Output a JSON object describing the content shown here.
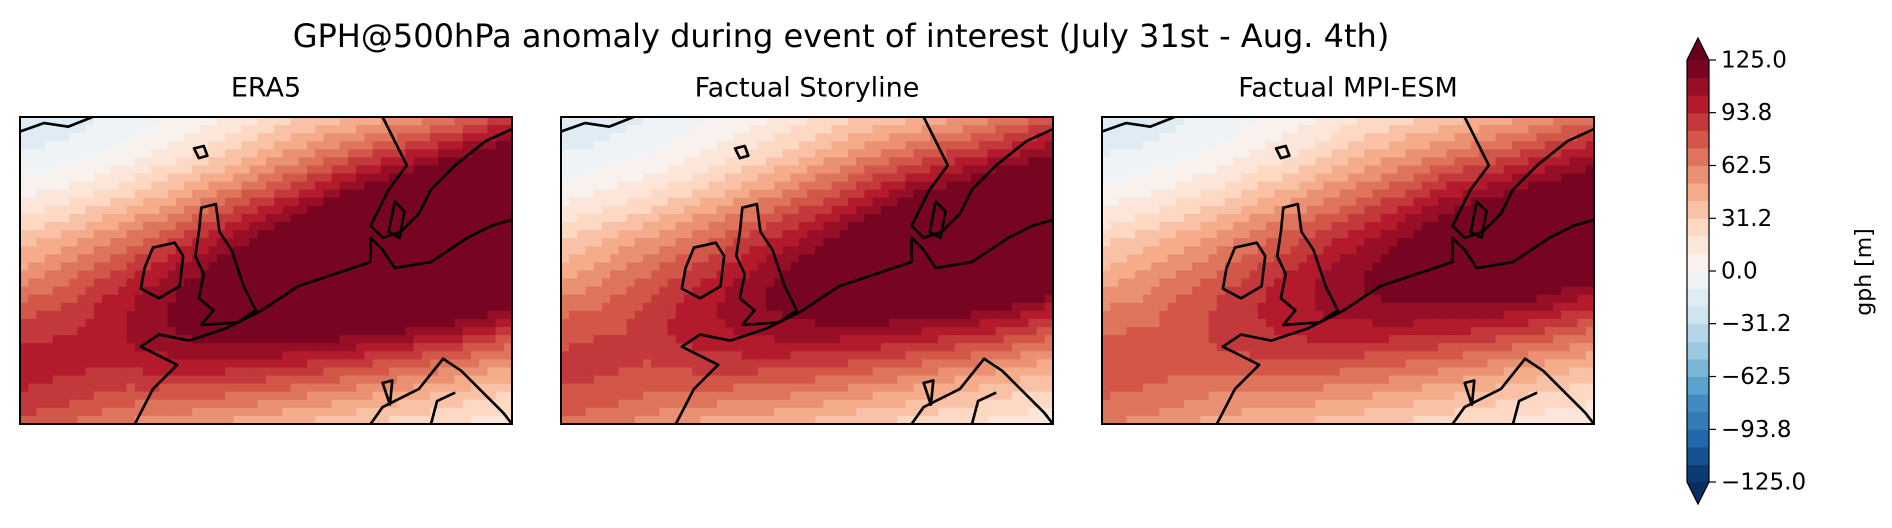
{
  "chart_data": {
    "type": "map",
    "title": "GPH@500hPa anomaly during event of interest (July 31st - Aug. 4th)",
    "panels": [
      "ERA5",
      "Factual Storyline",
      "Factual MPI-ESM"
    ],
    "colorbar": {
      "label": "gph [m]",
      "colormap": "RdBu_r",
      "lim": [
        -125,
        125
      ],
      "ticks": [
        {
          "value": 125,
          "label": "125.0"
        },
        93.8,
        62.5,
        31.2,
        {
          "value": 0,
          "label": "0.0"
        },
        {
          "value": -31.2,
          "label": "−31.2"
        },
        {
          "value": -62.5,
          "label": "−62.5"
        },
        {
          "value": -93.8,
          "label": "−93.8"
        },
        {
          "value": -125,
          "label": "−125.0"
        }
      ]
    }
  }
}
